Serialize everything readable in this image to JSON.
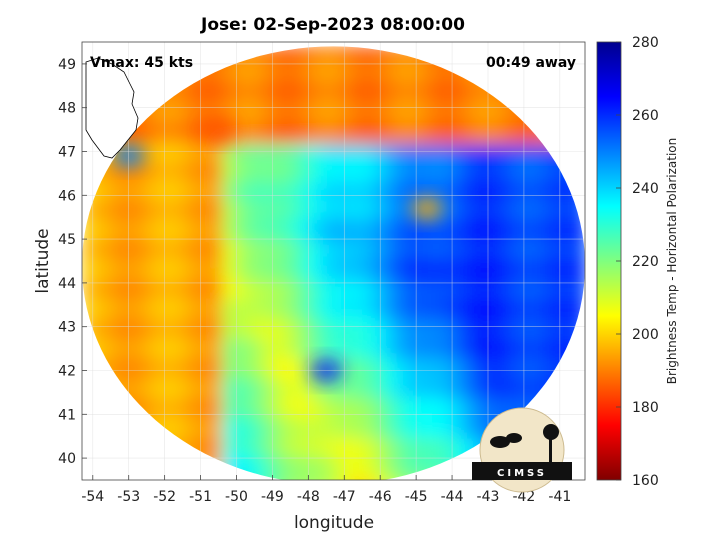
{
  "chart_data": {
    "type": "heatmap",
    "title": "Jose: 02-Sep-2023 08:00:00",
    "annotations": {
      "left": "Vmax: 45 kts",
      "right": "00:49 away"
    },
    "xlabel": "longitude",
    "ylabel": "latitude",
    "xlim": [
      -54.3,
      -40.3
    ],
    "ylim": [
      39.5,
      49.5
    ],
    "xticks": [
      -54,
      -53,
      -52,
      -51,
      -50,
      -49,
      -48,
      -47,
      -46,
      -45,
      -44,
      -43,
      -42,
      -41
    ],
    "yticks": [
      40,
      41,
      42,
      43,
      44,
      45,
      46,
      47,
      48,
      49
    ],
    "grid": true,
    "colorbar": {
      "label": "Brightness Temp - Horizontal Polarization",
      "range": [
        160,
        280
      ],
      "ticks": [
        160,
        180,
        200,
        220,
        240,
        260,
        280
      ],
      "colormap": "jet"
    },
    "swath": {
      "center_lon": -47.3,
      "center_lat": 44.4,
      "radius_deg_lon": 7.0,
      "radius_deg_lat": 5.0
    },
    "features": [
      {
        "name": "cold cloud core",
        "lon": -47.5,
        "lat": 42.0,
        "value": 262
      },
      {
        "name": "warm spot",
        "lon": -44.7,
        "lat": 45.7,
        "value": 195
      },
      {
        "name": "warm sector",
        "lon": -50.5,
        "lat": 47.5,
        "value": 185
      },
      {
        "name": "cold coastal pixel",
        "lon": -53.0,
        "lat": 46.9,
        "value": 250
      }
    ],
    "logo": "CIMSS"
  },
  "colors": {
    "outside_swath": "#ffffff",
    "grid": "#dddddd",
    "axis": "#444444"
  }
}
